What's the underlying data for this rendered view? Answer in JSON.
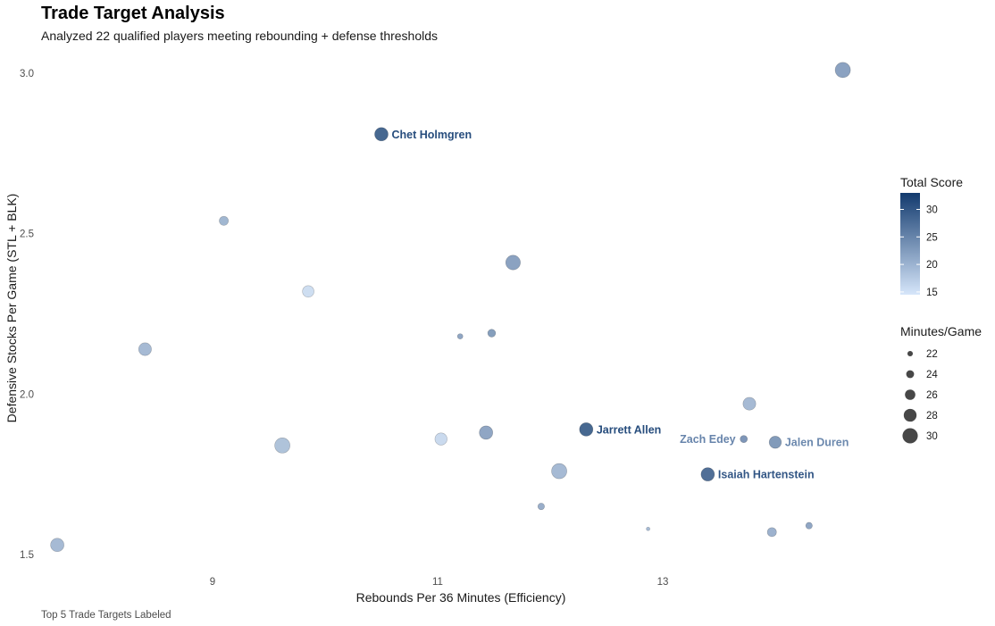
{
  "chart_data": {
    "type": "scatter",
    "title": "Trade Target Analysis",
    "subtitle": "Analyzed 22 qualified players meeting rebounding + defense thresholds",
    "caption": "Top 5 Trade Targets Labeled",
    "xlabel": "Rebounds Per 36 Minutes (Efficiency)",
    "ylabel": "Defensive Stocks Per Game (STL + BLK)",
    "xlim": [
      7.8,
      14.7
    ],
    "ylim": [
      1.45,
      3.06
    ],
    "x_ticks": [
      9,
      11,
      13
    ],
    "y_ticks": [
      1.5,
      2.0,
      2.5,
      3.0
    ],
    "grid": false,
    "legend_position": "right",
    "color_legend": {
      "title": "Total Score",
      "min": 14.5,
      "max": 33,
      "ticks": [
        15,
        20,
        25,
        30
      ],
      "low_color": "#d6e6fa",
      "high_color": "#123a6e"
    },
    "size_legend": {
      "title": "Minutes/Game",
      "values": [
        22,
        24,
        26,
        28,
        30
      ]
    },
    "points": [
      {
        "x": 7.62,
        "y": 1.53,
        "score": 20.5,
        "minutes": 28.5,
        "label": ""
      },
      {
        "x": 8.4,
        "y": 2.14,
        "score": 20.5,
        "minutes": 28,
        "label": ""
      },
      {
        "x": 9.1,
        "y": 2.54,
        "score": 21,
        "minutes": 25,
        "label": ""
      },
      {
        "x": 9.62,
        "y": 1.84,
        "score": 19.5,
        "minutes": 30,
        "label": ""
      },
      {
        "x": 9.85,
        "y": 2.32,
        "score": 16,
        "minutes": 27,
        "label": ""
      },
      {
        "x": 10.5,
        "y": 2.81,
        "score": 31,
        "minutes": 28.5,
        "label": "Chet Holmgren"
      },
      {
        "x": 11.03,
        "y": 1.86,
        "score": 16.5,
        "minutes": 27.5,
        "label": ""
      },
      {
        "x": 11.2,
        "y": 2.18,
        "score": 23,
        "minutes": 22,
        "label": ""
      },
      {
        "x": 11.43,
        "y": 1.88,
        "score": 23,
        "minutes": 28.5,
        "label": ""
      },
      {
        "x": 11.48,
        "y": 2.19,
        "score": 24,
        "minutes": 24,
        "label": ""
      },
      {
        "x": 11.67,
        "y": 2.41,
        "score": 23.5,
        "minutes": 29.5,
        "label": ""
      },
      {
        "x": 11.92,
        "y": 1.65,
        "score": 22,
        "minutes": 23,
        "label": ""
      },
      {
        "x": 12.08,
        "y": 1.76,
        "score": 20.5,
        "minutes": 30,
        "label": ""
      },
      {
        "x": 12.32,
        "y": 1.89,
        "score": 31,
        "minutes": 28.5,
        "label": "Jarrett Allen"
      },
      {
        "x": 12.87,
        "y": 1.58,
        "score": 20.5,
        "minutes": 20.5,
        "label": ""
      },
      {
        "x": 13.4,
        "y": 1.75,
        "score": 30,
        "minutes": 28.5,
        "label": "Isaiah Hartenstein"
      },
      {
        "x": 13.72,
        "y": 1.86,
        "score": 25,
        "minutes": 23.5,
        "label": "Zach Edey"
      },
      {
        "x": 13.77,
        "y": 1.97,
        "score": 20.5,
        "minutes": 28,
        "label": ""
      },
      {
        "x": 13.97,
        "y": 1.57,
        "score": 21.5,
        "minutes": 25,
        "label": ""
      },
      {
        "x": 14.0,
        "y": 1.85,
        "score": 24.5,
        "minutes": 27.5,
        "label": "Jalen Duren"
      },
      {
        "x": 14.3,
        "y": 1.59,
        "score": 23,
        "minutes": 23,
        "label": ""
      },
      {
        "x": 14.6,
        "y": 3.01,
        "score": 23.5,
        "minutes": 30,
        "label": ""
      }
    ]
  }
}
